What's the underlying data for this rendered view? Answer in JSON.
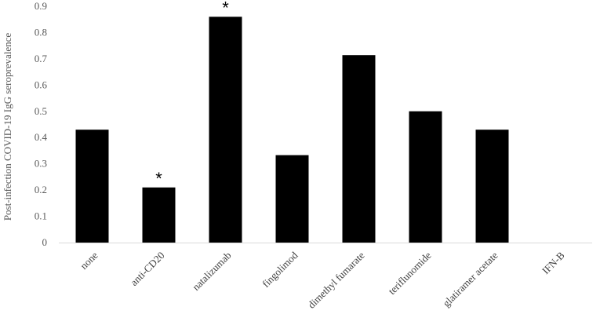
{
  "chart_data": {
    "type": "bar",
    "title": "",
    "xlabel": "",
    "ylabel": "Post-infection  COVID-19 IgG seroprevalence",
    "categories": [
      "none",
      "anti-CD20",
      "natalizumab",
      "fingolimod",
      "dimethyl fumarate",
      "teriflunomide",
      "glatiramer acetate",
      "IFN-B"
    ],
    "values": [
      0.43,
      0.21,
      0.86,
      0.333,
      0.714,
      0.5,
      0.43,
      0
    ],
    "significance": [
      "",
      "*",
      "*",
      "",
      "",
      "",
      "",
      ""
    ],
    "yticks": [
      "0",
      "0.1",
      "0.2",
      "0.3",
      "0.4",
      "0.5",
      "0.6",
      "0.7",
      "0.8",
      "0.9"
    ],
    "ylim": [
      0,
      0.9
    ],
    "grid": false,
    "legend": "none",
    "bar_color": "#000000",
    "axis_color": "#d9d9d9"
  }
}
